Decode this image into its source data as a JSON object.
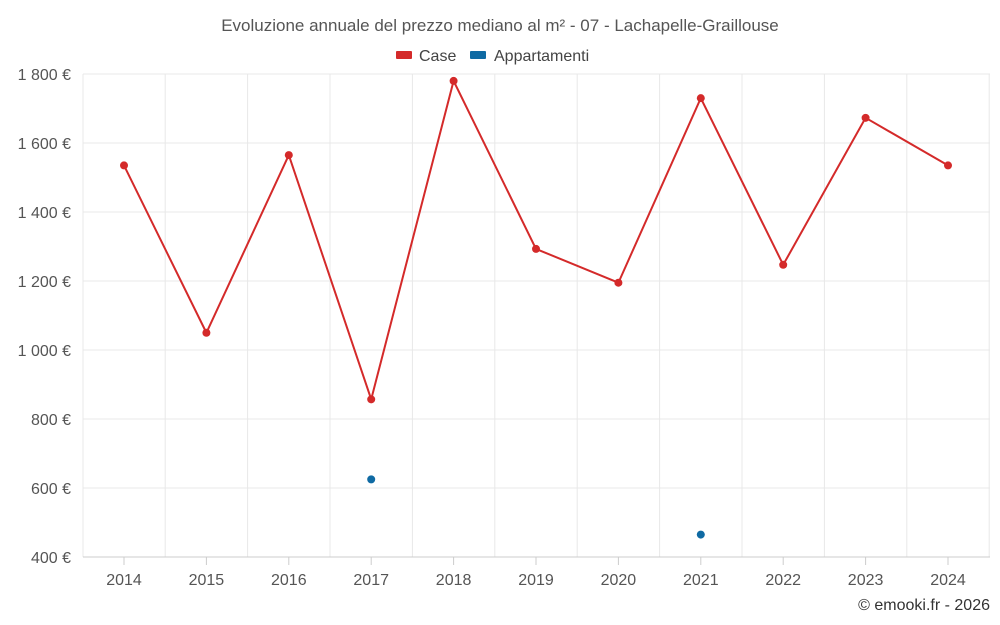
{
  "chart_data": {
    "type": "line",
    "title": "Evoluzione annuale del prezzo mediano al m² - 07 - Lachapelle-Graillouse",
    "categories": [
      "2014",
      "2015",
      "2016",
      "2017",
      "2018",
      "2019",
      "2020",
      "2021",
      "2022",
      "2023",
      "2024"
    ],
    "series": [
      {
        "name": "Case",
        "color": "#d42a2a",
        "values": [
          1535,
          1050,
          1565,
          857,
          1780,
          1293,
          1195,
          1730,
          1247,
          1673,
          1535
        ]
      },
      {
        "name": "Appartamenti",
        "color": "#0f6aa3",
        "values": [
          null,
          null,
          null,
          625,
          null,
          null,
          null,
          465,
          null,
          null,
          null
        ]
      }
    ],
    "ylim": [
      400,
      1800
    ],
    "yticks": [
      400,
      600,
      800,
      1000,
      1200,
      1400,
      1600,
      1800
    ],
    "ytick_labels": [
      "400 €",
      "600 €",
      "800 €",
      "1 000 €",
      "1 200 €",
      "1 400 €",
      "1 600 €",
      "1 800 €"
    ],
    "xlabel": "",
    "ylabel": "",
    "grid": true,
    "legend_position": "top-center"
  },
  "credit": "© emooki.fr - 2026"
}
